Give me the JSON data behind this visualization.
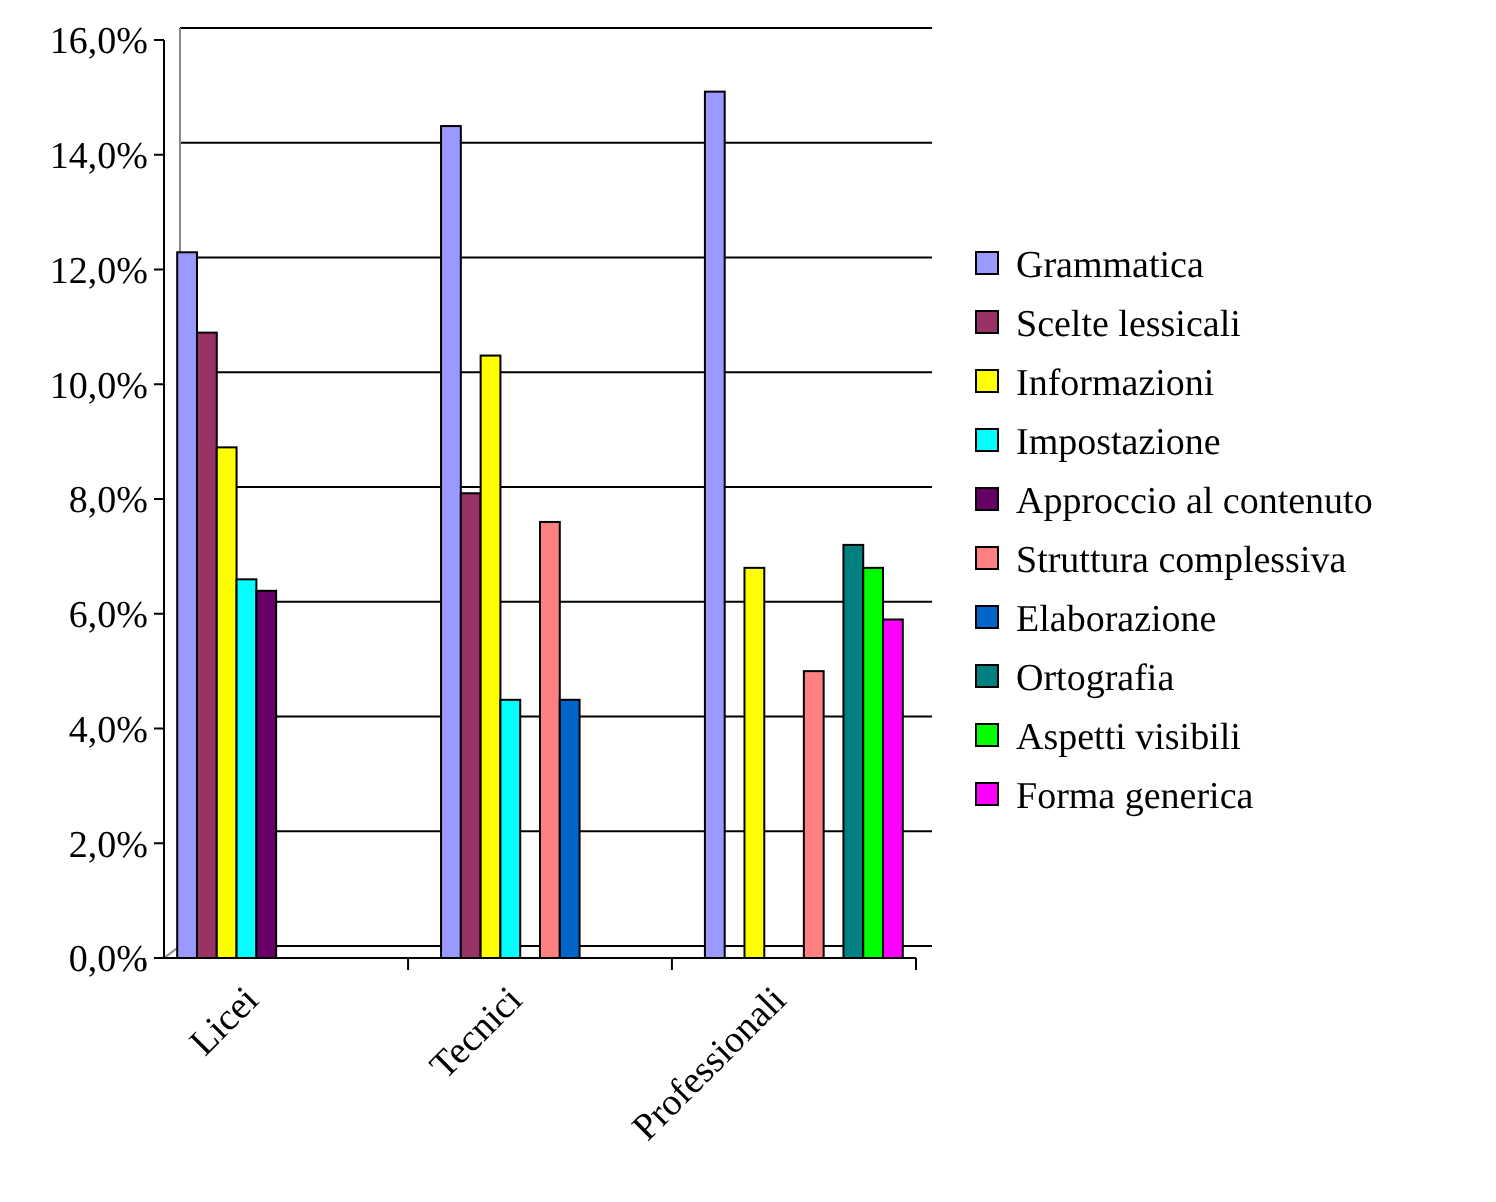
{
  "chart_data": {
    "type": "bar",
    "categories": [
      "Licei",
      "Tecnici",
      "Professionali"
    ],
    "series": [
      {
        "name": "Grammatica",
        "color": "#9999ff",
        "values": [
          12.3,
          14.5,
          15.1
        ]
      },
      {
        "name": "Scelte lessicali",
        "color": "#993366",
        "values": [
          10.9,
          8.1,
          null
        ]
      },
      {
        "name": "Informazioni",
        "color": "#ffff00",
        "values": [
          8.9,
          10.5,
          6.8
        ]
      },
      {
        "name": "Impostazione",
        "color": "#00ffff",
        "values": [
          6.6,
          4.5,
          null
        ]
      },
      {
        "name": "Approccio al contenuto",
        "color": "#660066",
        "values": [
          6.4,
          null,
          null
        ]
      },
      {
        "name": "Struttura complessiva",
        "color": "#ff8080",
        "values": [
          null,
          7.6,
          5.0
        ]
      },
      {
        "name": "Elaborazione",
        "color": "#0066cc",
        "values": [
          null,
          4.5,
          null
        ]
      },
      {
        "name": "Ortografia",
        "color": "#008080",
        "values": [
          null,
          null,
          7.2
        ]
      },
      {
        "name": "Aspetti visibili",
        "color": "#00ff00",
        "values": [
          null,
          null,
          6.8
        ]
      },
      {
        "name": "Forma generica",
        "color": "#ff00ff",
        "values": [
          null,
          null,
          5.9
        ]
      }
    ],
    "ylim": [
      0,
      16
    ],
    "yticks": [
      {
        "value": 0,
        "label": "0,0%"
      },
      {
        "value": 2,
        "label": "2,0%"
      },
      {
        "value": 4,
        "label": "4,0%"
      },
      {
        "value": 6,
        "label": "6,0%"
      },
      {
        "value": 8,
        "label": "8,0%"
      },
      {
        "value": 10,
        "label": "10,0%"
      },
      {
        "value": 12,
        "label": "12,0%"
      },
      {
        "value": 14,
        "label": "14,0%"
      },
      {
        "value": 16,
        "label": "16,0%"
      }
    ],
    "grid": "y",
    "legend": "right"
  }
}
